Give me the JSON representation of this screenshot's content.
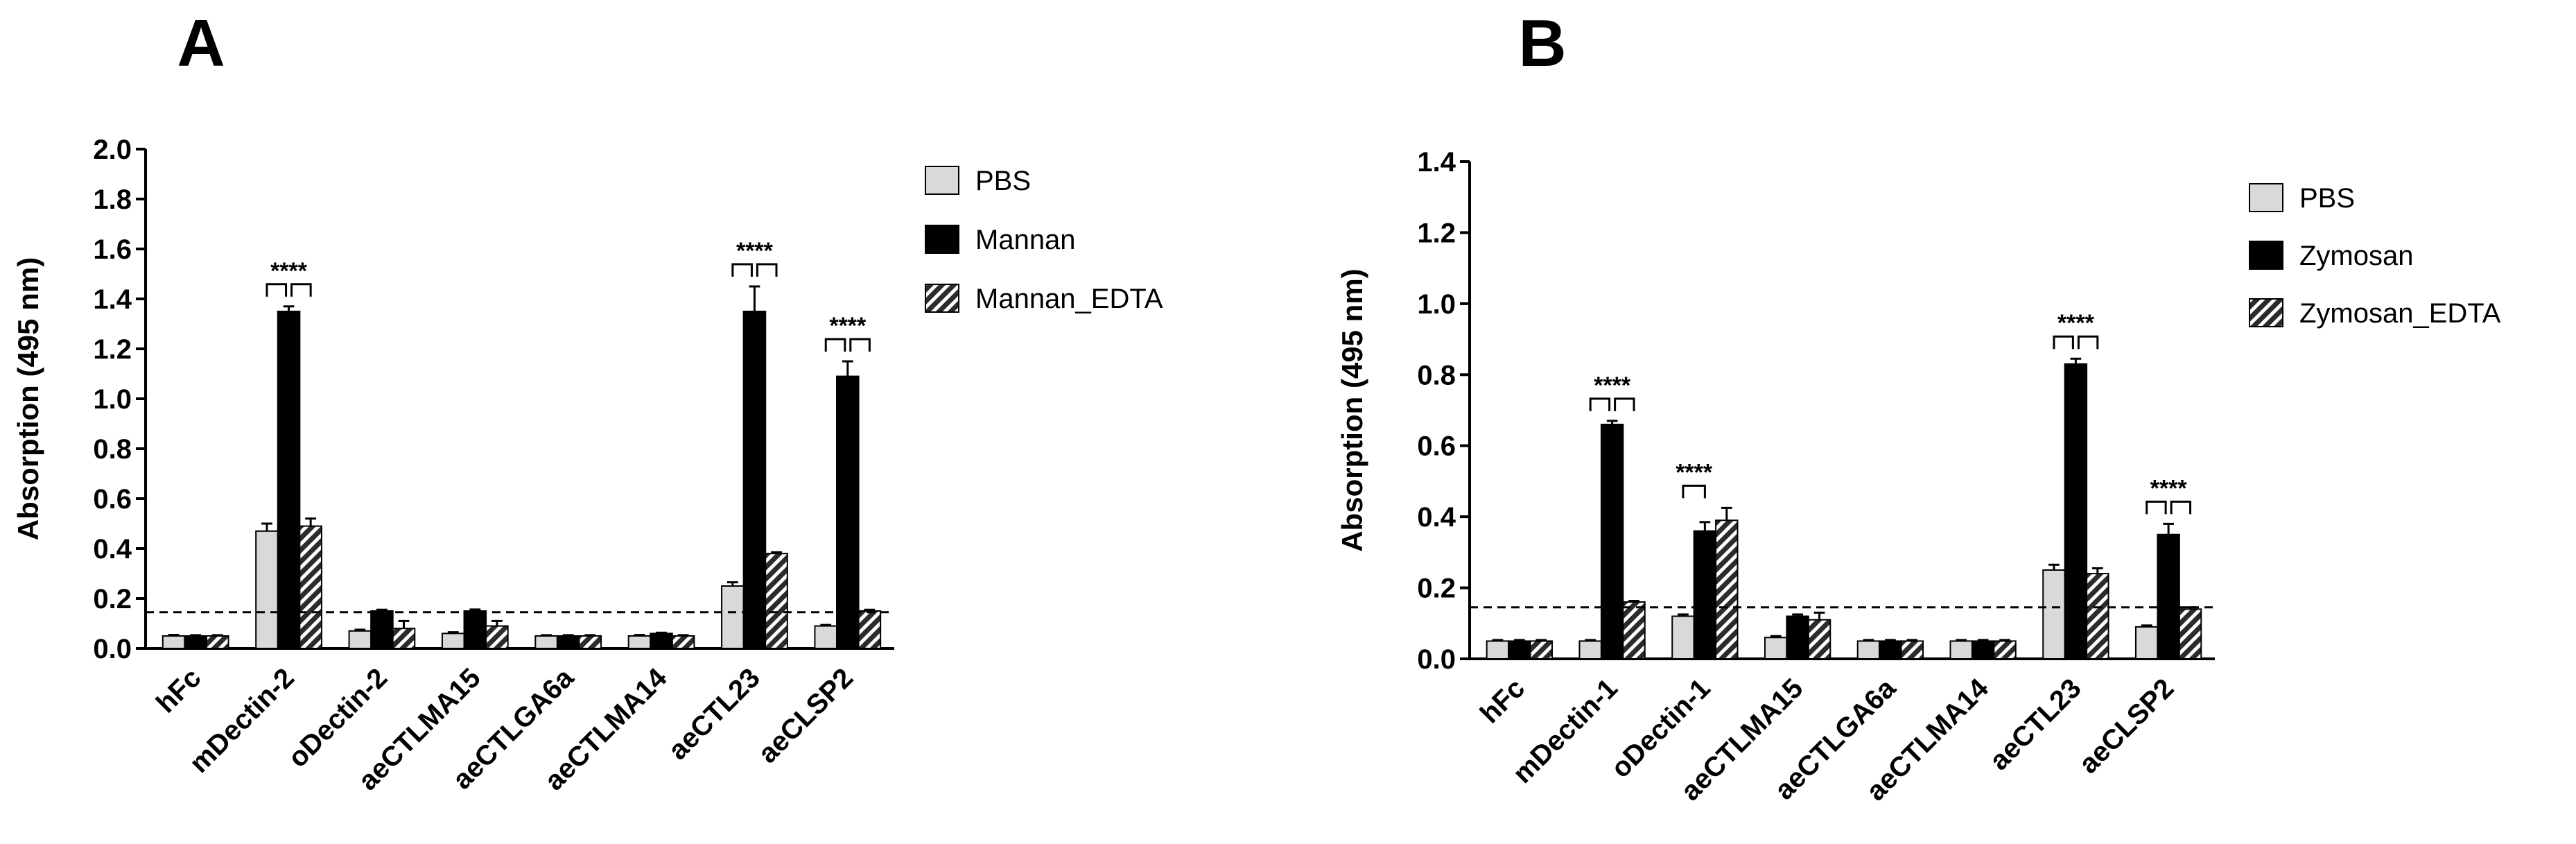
{
  "chart_data": [
    {
      "type": "bar",
      "panel_label": "A",
      "ylabel": "Absorption (495 nm)",
      "ylim": [
        0,
        2.0
      ],
      "yticks": [
        "0.0",
        "0.2",
        "0.4",
        "0.6",
        "0.8",
        "1.0",
        "1.2",
        "1.4",
        "1.6",
        "1.8",
        "2.0"
      ],
      "categories": [
        "hFc",
        "mDectin-2",
        "oDectin-2",
        "aeCTLMA15",
        "aeCTLGA6a",
        "aeCTLMA14",
        "aeCTL23",
        "aeCLSP2"
      ],
      "threshold": 0.145,
      "series": [
        {
          "name": "PBS",
          "color": "#d9d9d9",
          "pattern": "solid-light",
          "values": [
            0.05,
            0.47,
            0.07,
            0.06,
            0.05,
            0.05,
            0.25,
            0.09
          ],
          "errors": [
            0.004,
            0.03,
            0.005,
            0.005,
            0.003,
            0.004,
            0.015,
            0.004
          ]
        },
        {
          "name": "Mannan",
          "color": "#000000",
          "pattern": "solid-black",
          "values": [
            0.05,
            1.35,
            0.15,
            0.15,
            0.05,
            0.06,
            1.35,
            1.09
          ],
          "errors": [
            0.003,
            0.02,
            0.005,
            0.006,
            0.003,
            0.003,
            0.1,
            0.06
          ]
        },
        {
          "name": "Mannan_EDTA",
          "color": "#333333",
          "pattern": "hatched",
          "values": [
            0.05,
            0.49,
            0.08,
            0.09,
            0.05,
            0.05,
            0.38,
            0.15
          ],
          "errors": [
            0.003,
            0.03,
            0.03,
            0.02,
            0.003,
            0.003,
            0.005,
            0.005
          ]
        }
      ],
      "significance": [
        {
          "category_index": 1,
          "label": "****"
        },
        {
          "category_index": 6,
          "label": "****"
        },
        {
          "category_index": 7,
          "label": "****"
        }
      ],
      "legend_position": "right"
    },
    {
      "type": "bar",
      "panel_label": "B",
      "ylabel": "Absorption (495 nm)",
      "ylim": [
        0,
        1.4
      ],
      "yticks": [
        "0.0",
        "0.2",
        "0.4",
        "0.6",
        "0.8",
        "1.0",
        "1.2",
        "1.4"
      ],
      "categories": [
        "hFc",
        "mDectin-1",
        "oDectin-1",
        "aeCTLMA15",
        "aeCTLGA6a",
        "aeCTLMA14",
        "aeCTL23",
        "aeCLSP2"
      ],
      "threshold": 0.145,
      "series": [
        {
          "name": "PBS",
          "color": "#d9d9d9",
          "pattern": "solid-light",
          "values": [
            0.05,
            0.05,
            0.12,
            0.06,
            0.05,
            0.05,
            0.25,
            0.09
          ],
          "errors": [
            0.003,
            0.003,
            0.005,
            0.004,
            0.003,
            0.003,
            0.015,
            0.004
          ]
        },
        {
          "name": "Zymosan",
          "color": "#000000",
          "pattern": "solid-black",
          "values": [
            0.05,
            0.66,
            0.36,
            0.12,
            0.05,
            0.05,
            0.83,
            0.35
          ],
          "errors": [
            0.003,
            0.01,
            0.025,
            0.005,
            0.003,
            0.003,
            0.015,
            0.03
          ]
        },
        {
          "name": "Zymosan_EDTA",
          "color": "#333333",
          "pattern": "hatched",
          "values": [
            0.05,
            0.16,
            0.39,
            0.11,
            0.05,
            0.05,
            0.24,
            0.14
          ],
          "errors": [
            0.003,
            0.003,
            0.035,
            0.02,
            0.003,
            0.003,
            0.015,
            0.005
          ]
        }
      ],
      "significance": [
        {
          "category_index": 1,
          "label": "****"
        },
        {
          "category_index": 2,
          "label": "****",
          "pair_only": true
        },
        {
          "category_index": 6,
          "label": "****"
        },
        {
          "category_index": 7,
          "label": "****"
        }
      ],
      "legend_position": "right"
    }
  ]
}
